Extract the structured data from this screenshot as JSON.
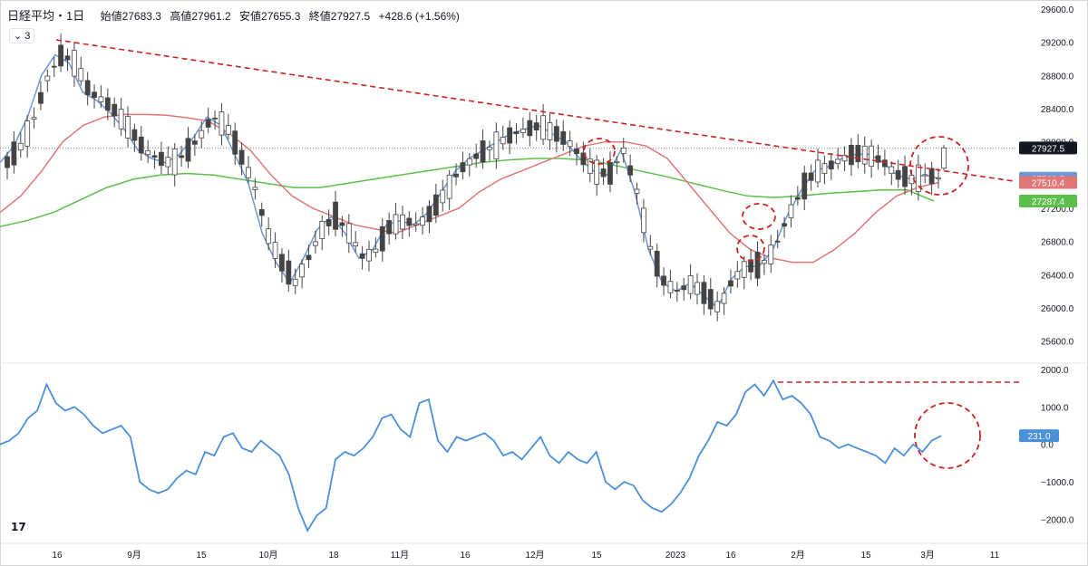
{
  "header": {
    "title": "日経平均・1日",
    "open": "始値27683.3",
    "high": "高値27961.2",
    "low": "安値27655.3",
    "close": "終値27927.5",
    "change": "+428.6 (+1.56%)"
  },
  "ma_toggle": "3",
  "price_axis_ticks": [
    "29600.0",
    "29200.0",
    "28800.0",
    "28400.0",
    "28000.0",
    "27600.0",
    "27200.0",
    "26800.0",
    "26400.0",
    "26000.0",
    "25600.0"
  ],
  "price_badges": [
    {
      "label": "27927.5",
      "value": 27927.5,
      "color": "#131722"
    },
    {
      "label": "27562.5",
      "value": 27562.5,
      "color": "#6a98d8"
    },
    {
      "label": "27510.4",
      "value": 27510.4,
      "color": "#e07676"
    },
    {
      "label": "27287.4",
      "value": 27287.4,
      "color": "#5cbf4a"
    }
  ],
  "osc_axis_ticks": [
    "2000.0",
    "1000.0",
    "0.0",
    "−1000.0",
    "−2000.0"
  ],
  "osc_badge": {
    "label": "231.0",
    "value": 231.0,
    "color": "#4a90d9"
  },
  "time_axis_labels": [
    "16",
    "9月",
    "15",
    "10月",
    "18",
    "11月",
    "16",
    "12月",
    "15",
    "2023",
    "16",
    "2月",
    "15",
    "3月",
    "11"
  ],
  "colors": {
    "up_candle": "#ffffff",
    "down_candle": "#444444",
    "ma_short": "#6a98d8",
    "ma_mid": "#e07676",
    "ma_long": "#5cbf4a",
    "trendline": "#cc2222",
    "oscillator": "#4a90d9"
  },
  "chart_data": [
    {
      "type": "candlestick",
      "title": "日経平均・1日",
      "ylim": [
        25400,
        29600
      ],
      "last": {
        "open": 27683.3,
        "high": 27961.2,
        "low": 27655.3,
        "close": 27927.5,
        "change": "+428.6 (+1.56%)"
      },
      "series": [
        {
          "name": "ma_short",
          "last_value": 27562.5,
          "values": [
            27750,
            27950,
            28300,
            28800,
            29050,
            28950,
            28600,
            28500,
            28350,
            28150,
            27900,
            27800,
            27750,
            27850,
            28050,
            28300,
            28200,
            27850,
            27500,
            26900,
            26550,
            26300,
            26600,
            26950,
            27100,
            26900,
            26600,
            26700,
            27000,
            27050,
            27000,
            27150,
            27400,
            27650,
            27800,
            27900,
            28000,
            28100,
            28150,
            28200,
            28100,
            28000,
            27800,
            27650,
            27600,
            27900,
            27400,
            26700,
            26300,
            26200,
            26300,
            26150,
            26000,
            26350,
            26500,
            26500,
            26700,
            27100,
            27400,
            27650,
            27700,
            27800,
            27850,
            27850,
            27750,
            27600,
            27550,
            27600,
            27562
          ]
        },
        {
          "name": "ma_mid",
          "last_value": 27510.4,
          "values": [
            27150,
            27350,
            27650,
            28000,
            28200,
            28300,
            28330,
            28330,
            28320,
            28290,
            28250,
            28100,
            27900,
            27600,
            27350,
            27200,
            27100,
            27000,
            26950,
            26900,
            27000,
            27100,
            27200,
            27400,
            27550,
            27650,
            27750,
            27850,
            27950,
            28000,
            28000,
            27950,
            27800,
            27500,
            27200,
            26900,
            26700,
            26600,
            26550,
            26550,
            26700,
            26900,
            27150,
            27350,
            27450,
            27510
          ]
        },
        {
          "name": "ma_long",
          "last_value": 27287.4,
          "values": [
            26980,
            27050,
            27150,
            27300,
            27450,
            27550,
            27600,
            27620,
            27600,
            27550,
            27500,
            27450,
            27450,
            27500,
            27550,
            27600,
            27650,
            27700,
            27750,
            27780,
            27800,
            27800,
            27780,
            27720,
            27650,
            27580,
            27500,
            27420,
            27350,
            27330,
            27350,
            27380,
            27400,
            27420,
            27420,
            27287
          ]
        }
      ]
    },
    {
      "type": "line",
      "ylim": [
        -2400,
        2000
      ],
      "last_value": 231.0,
      "series": [
        {
          "name": "oscillator",
          "values": [
            0,
            100,
            300,
            700,
            900,
            1600,
            1100,
            900,
            1000,
            800,
            500,
            300,
            400,
            500,
            200,
            -1000,
            -1200,
            -1300,
            -1200,
            -900,
            -700,
            -800,
            -200,
            -300,
            200,
            300,
            -100,
            -200,
            100,
            -100,
            -300,
            -800,
            -1700,
            -2300,
            -1900,
            -1700,
            -400,
            -200,
            -300,
            -100,
            200,
            700,
            800,
            400,
            200,
            1100,
            1200,
            100,
            -200,
            200,
            100,
            200,
            300,
            100,
            -300,
            -200,
            -400,
            -100,
            200,
            -300,
            -500,
            -200,
            -400,
            -500,
            -200,
            -1000,
            -1200,
            -1000,
            -1100,
            -1500,
            -1700,
            -1800,
            -1600,
            -1300,
            -900,
            -300,
            100,
            600,
            500,
            800,
            1400,
            1600,
            1300,
            1700,
            1200,
            1300,
            1100,
            800,
            200,
            100,
            -100,
            0,
            -100,
            -200,
            -300,
            -500,
            -100,
            -300,
            0,
            -200,
            100,
            231
          ]
        }
      ]
    }
  ]
}
